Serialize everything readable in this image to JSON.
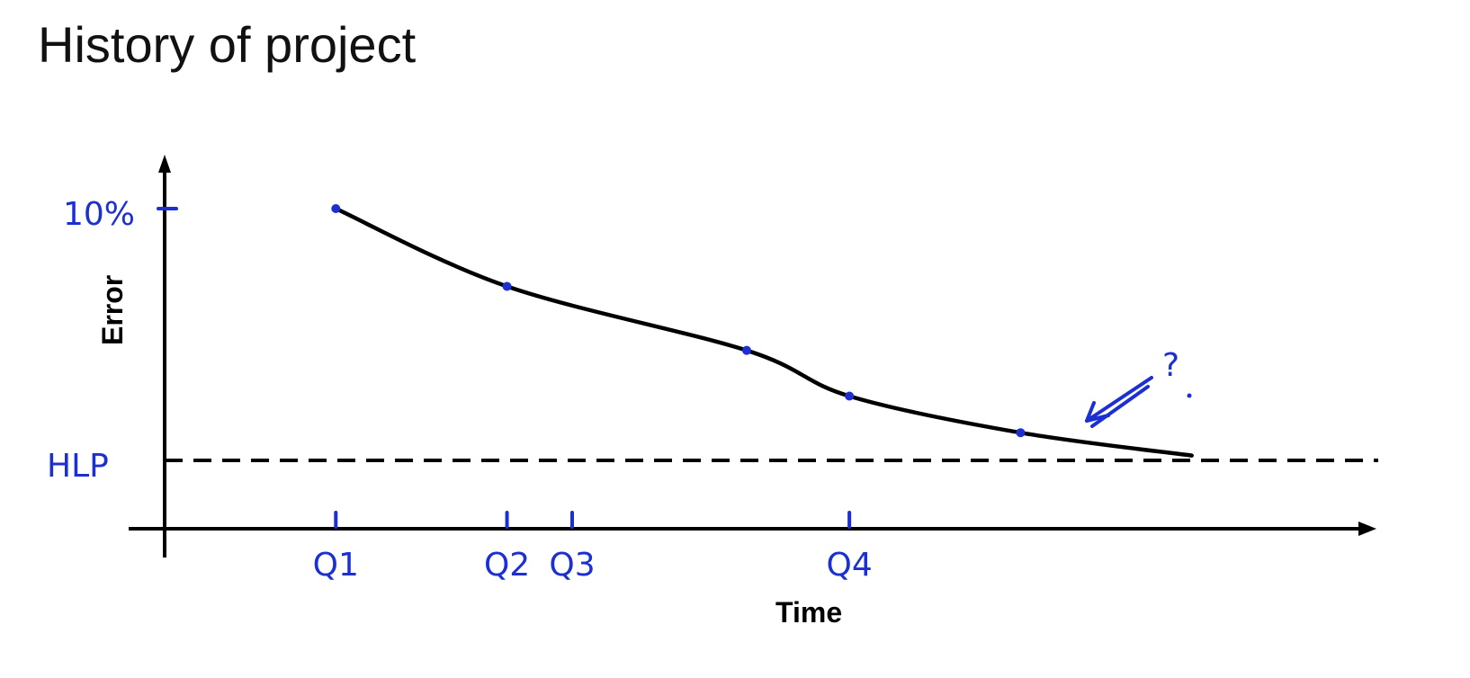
{
  "title": "History of project",
  "chart_data": {
    "type": "line",
    "title": "History of project",
    "xlabel": "Time",
    "ylabel": "Error",
    "x_ticks": [
      "Q1",
      "Q2",
      "Q3",
      "Q4"
    ],
    "y_tick_top": "10%",
    "reference_line": {
      "label": "HLP"
    },
    "points": [
      {
        "x": 1.0,
        "y": 10.0
      },
      {
        "x": 2.0,
        "y": 8.3
      },
      {
        "x": 3.4,
        "y": 6.9
      },
      {
        "x": 4.0,
        "y": 5.9
      },
      {
        "x": 5.0,
        "y": 5.1
      }
    ],
    "curve_end": {
      "x": 6.0,
      "y": 4.6
    },
    "annotation": "?",
    "ylim": [
      3.0,
      10.0
    ],
    "xlim": [
      0,
      7.0
    ],
    "grid": false,
    "colors": {
      "ink": "#000000",
      "marker": "#1c2fd1"
    }
  }
}
